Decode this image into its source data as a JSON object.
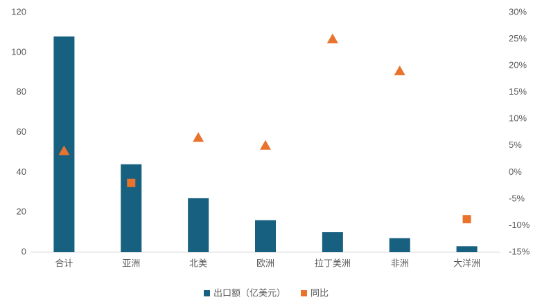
{
  "chart_data": {
    "type": "bar",
    "categories": [
      "合计",
      "亚洲",
      "北美",
      "欧洲",
      "拉丁美洲",
      "非洲",
      "大洋洲"
    ],
    "series": [
      {
        "name": "出口额（亿美元）",
        "type": "bar",
        "color": "#17607f",
        "values": [
          108,
          44,
          27,
          16,
          10,
          7,
          3
        ]
      },
      {
        "name": "同比",
        "type": "scatter",
        "axis": "y2",
        "color": "#e8732d",
        "values": [
          4,
          -2,
          6.5,
          5,
          25,
          19,
          -8.8
        ]
      }
    ],
    "ylim": [
      0,
      120
    ],
    "yticks": [
      0,
      20,
      40,
      60,
      80,
      100,
      120
    ],
    "y2lim": [
      -15,
      30
    ],
    "y2ticks": [
      {
        "value": -15,
        "label": "-15%"
      },
      {
        "value": -10,
        "label": "-10%"
      },
      {
        "value": -5,
        "label": "-5%"
      },
      {
        "value": 0,
        "label": "0%"
      },
      {
        "value": 5,
        "label": "5%"
      },
      {
        "value": 10,
        "label": "10%"
      },
      {
        "value": 15,
        "label": "15%"
      },
      {
        "value": 20,
        "label": "20%"
      },
      {
        "value": 25,
        "label": "25%"
      },
      {
        "value": 30,
        "label": "30%"
      }
    ],
    "grid": false,
    "legend": "bottom"
  }
}
